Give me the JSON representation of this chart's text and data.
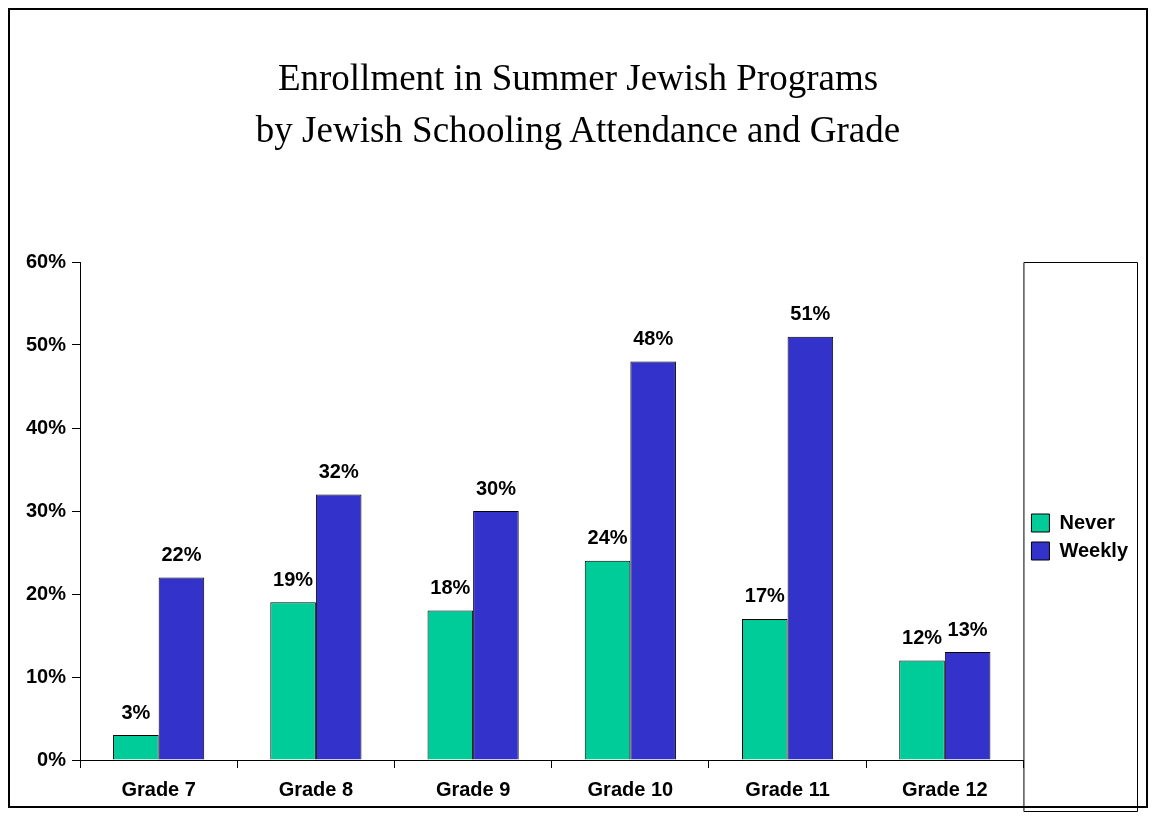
{
  "chart_data": {
    "type": "bar",
    "title": "Enrollment in Summer Jewish Programs\nby Jewish Schooling Attendance and Grade",
    "categories": [
      "Grade 7",
      "Grade 8",
      "Grade 9",
      "Grade 10",
      "Grade 11",
      "Grade 12"
    ],
    "series": [
      {
        "name": "Never",
        "color": "#00cc99",
        "values": [
          3,
          19,
          18,
          24,
          17,
          12
        ],
        "value_labels": [
          "3%",
          "19%",
          "18%",
          "24%",
          "17%",
          "12%"
        ]
      },
      {
        "name": "Weekly",
        "color": "#3333cc",
        "values": [
          22,
          32,
          30,
          48,
          51,
          13
        ],
        "value_labels": [
          "22%",
          "32%",
          "30%",
          "48%",
          "51%",
          "13%"
        ]
      }
    ],
    "ylim": [
      0,
      60
    ],
    "yticks": [
      {
        "value": 0,
        "label": "0%"
      },
      {
        "value": 10,
        "label": "10%"
      },
      {
        "value": 20,
        "label": "20%"
      },
      {
        "value": 30,
        "label": "30%"
      },
      {
        "value": 40,
        "label": "40%"
      },
      {
        "value": 50,
        "label": "50%"
      },
      {
        "value": 60,
        "label": "60%"
      }
    ],
    "grid": false,
    "legend": "right"
  }
}
